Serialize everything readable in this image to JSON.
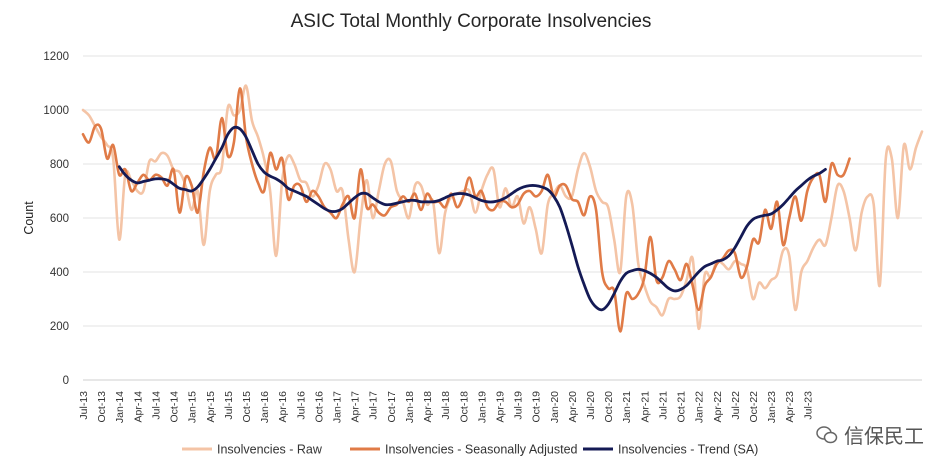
{
  "chart_data": {
    "type": "line",
    "title": "ASIC Total Monthly Corporate Insolvencies",
    "xlabel": "",
    "ylabel": "Count",
    "ylim": [
      0,
      1200
    ],
    "y_ticks": [
      0,
      200,
      400,
      600,
      800,
      1000,
      1200
    ],
    "grid": "horizontal",
    "legend_position": "bottom",
    "x_start": "2013-07",
    "x_tick_labels": [
      "Jul-13",
      "Oct-13",
      "Jan-14",
      "Apr-14",
      "Jul-14",
      "Oct-14",
      "Jan-15",
      "Apr-15",
      "Jul-15",
      "Oct-15",
      "Jan-16",
      "Apr-16",
      "Jul-16",
      "Oct-16",
      "Jan-17",
      "Apr-17",
      "Jul-17",
      "Oct-17",
      "Jan-18",
      "Apr-18",
      "Jul-18",
      "Oct-18",
      "Jan-19",
      "Apr-19",
      "Jul-19",
      "Oct-19",
      "Jan-20",
      "Apr-20",
      "Jul-20",
      "Oct-20",
      "Jan-21",
      "Apr-21",
      "Jul-21",
      "Oct-21",
      "Jan-22",
      "Apr-22",
      "Jul-22",
      "Oct-22",
      "Jan-23",
      "Apr-23",
      "Jul-23"
    ],
    "series": [
      {
        "name": "Insolvencies - Raw",
        "color": "#f4c4a6",
        "values": [
          1000,
          980,
          940,
          900,
          870,
          820,
          520,
          760,
          740,
          700,
          700,
          810,
          810,
          840,
          830,
          780,
          770,
          720,
          630,
          700,
          500,
          700,
          760,
          790,
          1010,
          980,
          1000,
          1090,
          960,
          900,
          820,
          700,
          460,
          740,
          830,
          800,
          740,
          730,
          680,
          720,
          800,
          780,
          700,
          700,
          520,
          400,
          600,
          740,
          600,
          700,
          800,
          810,
          700,
          660,
          600,
          720,
          720,
          650,
          660,
          470,
          620,
          680,
          690,
          700,
          700,
          620,
          700,
          760,
          780,
          640,
          710,
          640,
          680,
          580,
          640,
          560,
          470,
          650,
          690,
          720,
          680,
          680,
          780,
          840,
          790,
          700,
          660,
          640,
          520,
          400,
          680,
          650,
          430,
          350,
          290,
          270,
          240,
          300,
          300,
          310,
          370,
          450,
          190,
          390,
          380,
          440,
          430,
          410,
          440,
          430,
          410,
          300,
          360,
          340,
          370,
          390,
          480,
          460,
          260,
          400,
          440,
          490,
          520,
          500,
          600,
          720,
          700,
          600,
          480,
          620,
          680,
          650,
          350,
          820,
          820,
          600,
          870,
          780,
          860,
          920
        ]
      },
      {
        "name": "Insolvencies - Seasonally Adjusted",
        "color": "#e07b47",
        "values": [
          910,
          880,
          940,
          930,
          820,
          870,
          760,
          780,
          700,
          730,
          760,
          740,
          760,
          750,
          720,
          780,
          620,
          750,
          720,
          620,
          770,
          860,
          820,
          970,
          830,
          880,
          1080,
          900,
          800,
          730,
          700,
          840,
          780,
          820,
          670,
          720,
          720,
          660,
          700,
          680,
          640,
          620,
          600,
          650,
          680,
          600,
          780,
          640,
          650,
          620,
          610,
          640,
          650,
          680,
          660,
          690,
          630,
          690,
          660,
          660,
          640,
          690,
          640,
          680,
          750,
          680,
          700,
          640,
          630,
          660,
          660,
          640,
          650,
          690,
          700,
          680,
          700,
          760,
          680,
          720,
          720,
          670,
          660,
          610,
          680,
          630,
          400,
          340,
          330,
          180,
          320,
          300,
          320,
          380,
          530,
          370,
          380,
          440,
          410,
          370,
          430,
          350,
          260,
          350,
          380,
          430,
          450,
          480,
          470,
          380,
          420,
          520,
          510,
          630,
          560,
          660,
          500,
          600,
          680,
          590,
          700,
          750,
          760,
          660,
          800,
          760,
          760,
          820
        ]
      },
      {
        "name": "Insolvencies - Trend (SA)",
        "color": "#141a55",
        "x_offset": 6,
        "values": [
          790,
          760,
          740,
          730,
          735,
          740,
          745,
          745,
          740,
          725,
          710,
          705,
          700,
          715,
          745,
          780,
          820,
          860,
          910,
          935,
          930,
          900,
          850,
          800,
          770,
          755,
          745,
          730,
          710,
          700,
          690,
          680,
          665,
          650,
          635,
          625,
          625,
          635,
          655,
          675,
          690,
          690,
          675,
          660,
          650,
          650,
          655,
          660,
          665,
          665,
          660,
          660,
          660,
          665,
          675,
          685,
          690,
          690,
          685,
          675,
          665,
          660,
          660,
          665,
          675,
          690,
          705,
          715,
          720,
          720,
          715,
          705,
          680,
          640,
          575,
          500,
          420,
          355,
          300,
          270,
          260,
          280,
          320,
          365,
          395,
          405,
          410,
          405,
          395,
          380,
          360,
          340,
          330,
          335,
          350,
          375,
          400,
          420,
          430,
          440,
          445,
          460,
          490,
          530,
          570,
          595,
          605,
          610,
          615,
          630,
          650,
          675,
          700,
          720,
          740,
          755,
          765,
          780
        ]
      }
    ]
  },
  "watermark": {
    "text": "信保民工"
  }
}
